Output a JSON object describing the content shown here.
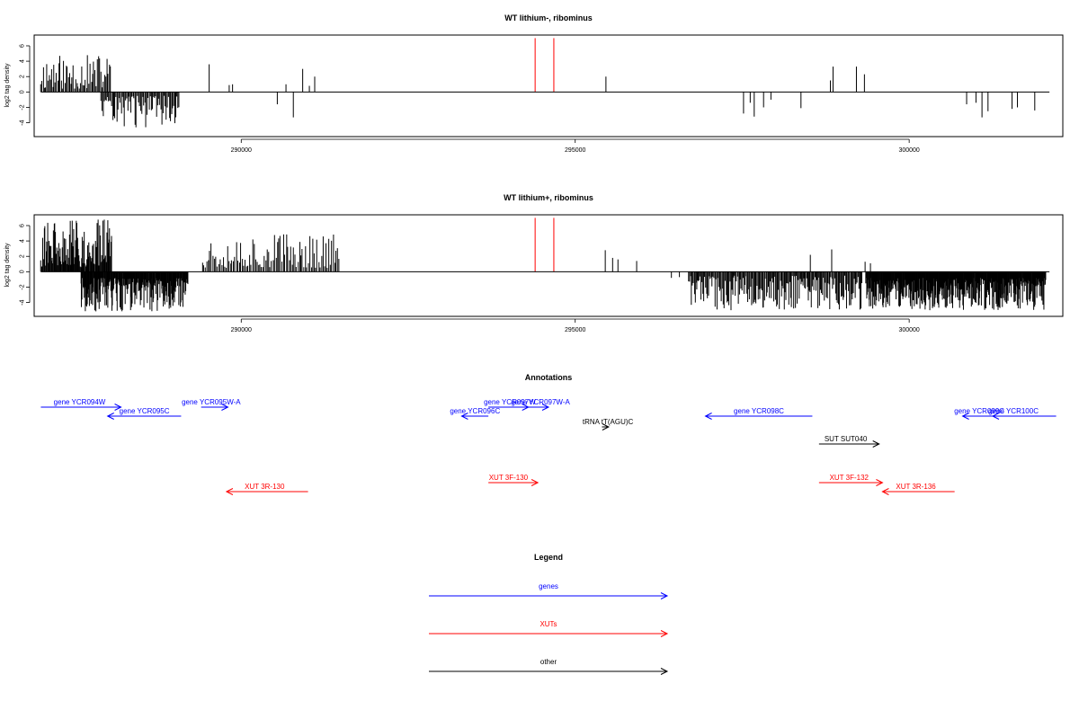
{
  "chart_data": [
    {
      "type": "bar",
      "title": "WT lithium-, ribominus",
      "xlabel": "",
      "ylabel": "log2 tag density",
      "xlim": [
        286900,
        302300
      ],
      "ylim": [
        -5.8,
        7.4
      ],
      "xticks": [
        290000,
        295000,
        300000
      ],
      "xtick_labels": [
        "290000",
        "295000",
        "300000"
      ],
      "yticks": [
        -4,
        -2,
        0,
        2,
        4,
        6
      ],
      "ytick_labels": [
        "-4",
        "-2",
        "0",
        "2",
        "4",
        "6"
      ],
      "grid": false,
      "baseline": {
        "x": [
          287000,
          302100
        ]
      },
      "bar_color": "#000000",
      "marker_color": "#ff0000",
      "markers_x": [
        294400,
        294680
      ],
      "positive_regions": [
        {
          "x0": 287000,
          "x1": 288060,
          "min": 0.4,
          "max": 4.9,
          "step": 18,
          "seed": 11
        }
      ],
      "negative_regions": [
        {
          "x0": 287900,
          "x1": 289080,
          "min": 0.5,
          "max": 4.6,
          "step": 16,
          "seed": 23
        }
      ],
      "points": [
        {
          "x": 289520,
          "y": 3.6
        },
        {
          "x": 289820,
          "y": 0.9
        },
        {
          "x": 289870,
          "y": 1.0
        },
        {
          "x": 290540,
          "y": -1.6
        },
        {
          "x": 290670,
          "y": 1.0
        },
        {
          "x": 290780,
          "y": -3.3
        },
        {
          "x": 290920,
          "y": 3.0
        },
        {
          "x": 291020,
          "y": 0.8
        },
        {
          "x": 291100,
          "y": 2.0
        },
        {
          "x": 295460,
          "y": 2.0
        },
        {
          "x": 297520,
          "y": -2.8
        },
        {
          "x": 297620,
          "y": -1.4
        },
        {
          "x": 297680,
          "y": -3.2
        },
        {
          "x": 297820,
          "y": -2.0
        },
        {
          "x": 297930,
          "y": -1.0
        },
        {
          "x": 298380,
          "y": -2.1
        },
        {
          "x": 298820,
          "y": 1.5
        },
        {
          "x": 298860,
          "y": 3.3
        },
        {
          "x": 299210,
          "y": 3.3
        },
        {
          "x": 299330,
          "y": 2.3
        },
        {
          "x": 300860,
          "y": -1.6
        },
        {
          "x": 301000,
          "y": -1.4
        },
        {
          "x": 301090,
          "y": -3.3
        },
        {
          "x": 301180,
          "y": -2.5
        },
        {
          "x": 301540,
          "y": -2.2
        },
        {
          "x": 301620,
          "y": -2.0
        },
        {
          "x": 301880,
          "y": -2.4
        }
      ]
    },
    {
      "type": "bar",
      "title": "WT lithium+, ribominus",
      "xlabel": "",
      "ylabel": "log2 tag density",
      "xlim": [
        286900,
        302300
      ],
      "ylim": [
        -5.8,
        7.4
      ],
      "xticks": [
        290000,
        295000,
        300000
      ],
      "xtick_labels": [
        "290000",
        "295000",
        "300000"
      ],
      "yticks": [
        -4,
        -2,
        0,
        2,
        4,
        6
      ],
      "ytick_labels": [
        "-4",
        "-2",
        "0",
        "2",
        "4",
        "6"
      ],
      "grid": false,
      "baseline": {
        "x": [
          287000,
          302100
        ]
      },
      "bar_color": "#000000",
      "marker_color": "#ff0000",
      "markers_x": [
        294400,
        294680
      ],
      "positive_regions": [
        {
          "x0": 287000,
          "x1": 288060,
          "min": 0.6,
          "max": 6.8,
          "step": 10,
          "seed": 31
        },
        {
          "x0": 289420,
          "x1": 291480,
          "min": 0.5,
          "max": 5.2,
          "step": 22,
          "seed": 37
        }
      ],
      "negative_regions": [
        {
          "x0": 287600,
          "x1": 289200,
          "min": 0.8,
          "max": 5.2,
          "step": 8,
          "seed": 41
        },
        {
          "x0": 296700,
          "x1": 299300,
          "min": 0.5,
          "max": 5.0,
          "step": 14,
          "seed": 43
        },
        {
          "x0": 299350,
          "x1": 302050,
          "min": 0.8,
          "max": 5.0,
          "step": 7,
          "seed": 47
        }
      ],
      "points": [
        {
          "x": 295450,
          "y": 2.8
        },
        {
          "x": 295560,
          "y": 1.8
        },
        {
          "x": 295640,
          "y": 1.6
        },
        {
          "x": 295920,
          "y": 1.4
        },
        {
          "x": 296440,
          "y": -0.8
        },
        {
          "x": 296560,
          "y": -0.7
        },
        {
          "x": 296820,
          "y": -2.3
        },
        {
          "x": 298520,
          "y": 2.2
        },
        {
          "x": 298840,
          "y": 2.9
        },
        {
          "x": 299340,
          "y": 1.3
        },
        {
          "x": 299420,
          "y": 1.1
        }
      ]
    }
  ],
  "annotations": {
    "title": "Annotations",
    "items": [
      {
        "label": "gene YCR094W",
        "strand": "+",
        "x0": 287000,
        "x1": 288200,
        "row": 1,
        "color": "#0000ff",
        "label_x": 287580
      },
      {
        "label": "gene YCR095C",
        "strand": "-",
        "x0": 288000,
        "x1": 289100,
        "row": 2,
        "color": "#0000ff",
        "label_x": 288550
      },
      {
        "label": "gene YCR095W-A",
        "strand": "+",
        "x0": 289400,
        "x1": 289800,
        "row": 1,
        "color": "#0000ff",
        "label_x": 289550
      },
      {
        "label": "gene YCR096C",
        "strand": "-",
        "x0": 293300,
        "x1": 293700,
        "row": 2,
        "color": "#0000ff",
        "label_x": 293500
      },
      {
        "label": "gene YCR097W",
        "strand": "+",
        "x0": 293700,
        "x1": 294300,
        "row": 1,
        "color": "#0000ff",
        "label_x": 294020
      },
      {
        "label": "gene YCR097W-A",
        "strand": "+",
        "x0": 294300,
        "x1": 294600,
        "row": 1,
        "color": "#0000ff",
        "label_x": 294480
      },
      {
        "label": "tRNA tT(AGU)C",
        "strand": "+",
        "x0": 295400,
        "x1": 295500,
        "row": 3,
        "color": "#000000",
        "label_x": 295490
      },
      {
        "label": "gene YCR098C",
        "strand": "-",
        "x0": 296950,
        "x1": 298550,
        "row": 2,
        "color": "#0000ff",
        "label_x": 297750
      },
      {
        "label": "gene YCR099C",
        "strand": "-",
        "x0": 300800,
        "x1": 301300,
        "row": 2,
        "color": "#0000ff",
        "label_x": 301050
      },
      {
        "label": "gene YCR100C",
        "strand": "-",
        "x0": 301250,
        "x1": 302200,
        "row": 2,
        "color": "#0000ff",
        "label_x": 301560
      },
      {
        "label": "SUT SUT040",
        "strand": "+",
        "x0": 298650,
        "x1": 299550,
        "row": 4,
        "color": "#000000",
        "label_x": 299050
      },
      {
        "label": "XUT 3R-130",
        "strand": "-",
        "x0": 289780,
        "x1": 291000,
        "row": 6,
        "color": "#ff0000",
        "label_x": 290350
      },
      {
        "label": "XUT 3F-130",
        "strand": "+",
        "x0": 293700,
        "x1": 294440,
        "row": 5,
        "color": "#ff0000",
        "label_x": 294000
      },
      {
        "label": "XUT 3F-132",
        "strand": "+",
        "x0": 298650,
        "x1": 299600,
        "row": 5,
        "color": "#ff0000",
        "label_x": 299100
      },
      {
        "label": "XUT 3R-136",
        "strand": "-",
        "x0": 299600,
        "x1": 300680,
        "row": 6,
        "color": "#ff0000",
        "label_x": 300100
      }
    ]
  },
  "legend": {
    "title": "Legend",
    "items": [
      {
        "label": "genes",
        "color": "#0000ff"
      },
      {
        "label": "XUTs",
        "color": "#ff0000"
      },
      {
        "label": "other",
        "color": "#000000"
      }
    ]
  }
}
